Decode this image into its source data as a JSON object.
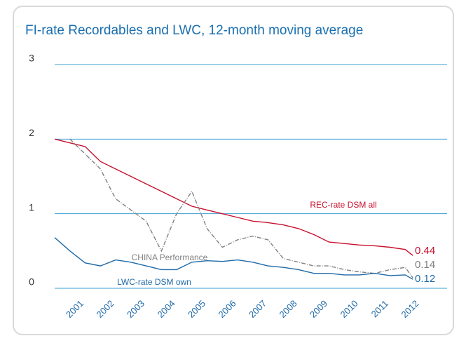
{
  "chart_data": {
    "type": "line",
    "title": "FI-rate Recordables and LWC, 12-month moving average",
    "x": [
      2000,
      2000.5,
      2001,
      2001.5,
      2002,
      2002.5,
      2003,
      2003.5,
      2004,
      2004.5,
      2005,
      2005.5,
      2006,
      2006.5,
      2007,
      2007.5,
      2008,
      2008.5,
      2009,
      2009.5,
      2010,
      2010.5,
      2011,
      2011.5,
      2011.75
    ],
    "series": [
      {
        "name": "REC-rate DSM all",
        "color": "#c8102e",
        "values": [
          2.0,
          1.95,
          1.9,
          1.7,
          1.6,
          1.5,
          1.4,
          1.3,
          1.2,
          1.1,
          1.05,
          1.0,
          0.95,
          0.9,
          0.88,
          0.85,
          0.8,
          0.72,
          0.62,
          0.6,
          0.58,
          0.57,
          0.55,
          0.52,
          0.44
        ]
      },
      {
        "name": "CHINA Performance",
        "color": "#808080",
        "values": [
          null,
          2.0,
          1.8,
          1.6,
          1.2,
          1.05,
          0.9,
          0.5,
          1.0,
          1.3,
          0.8,
          0.55,
          0.65,
          0.7,
          0.65,
          0.4,
          0.35,
          0.3,
          0.3,
          0.25,
          0.22,
          0.2,
          0.25,
          0.28,
          0.14
        ]
      },
      {
        "name": "LWC-rate DSM own",
        "color": "#1f6aa8",
        "values": [
          0.68,
          0.5,
          0.34,
          0.3,
          0.38,
          0.35,
          0.3,
          0.25,
          0.25,
          0.35,
          0.37,
          0.36,
          0.38,
          0.35,
          0.3,
          0.28,
          0.25,
          0.2,
          0.2,
          0.18,
          0.18,
          0.2,
          0.17,
          0.18,
          0.12
        ]
      }
    ],
    "xlim": [
      2000,
      2012.3
    ],
    "xticks": [
      2001,
      2002,
      2003,
      2004,
      2005,
      2006,
      2007,
      2008,
      2009,
      2010,
      2011,
      2012
    ],
    "ylim": [
      0,
      3
    ],
    "yticks": [
      0,
      1,
      2,
      3
    ],
    "grid": true
  }
}
